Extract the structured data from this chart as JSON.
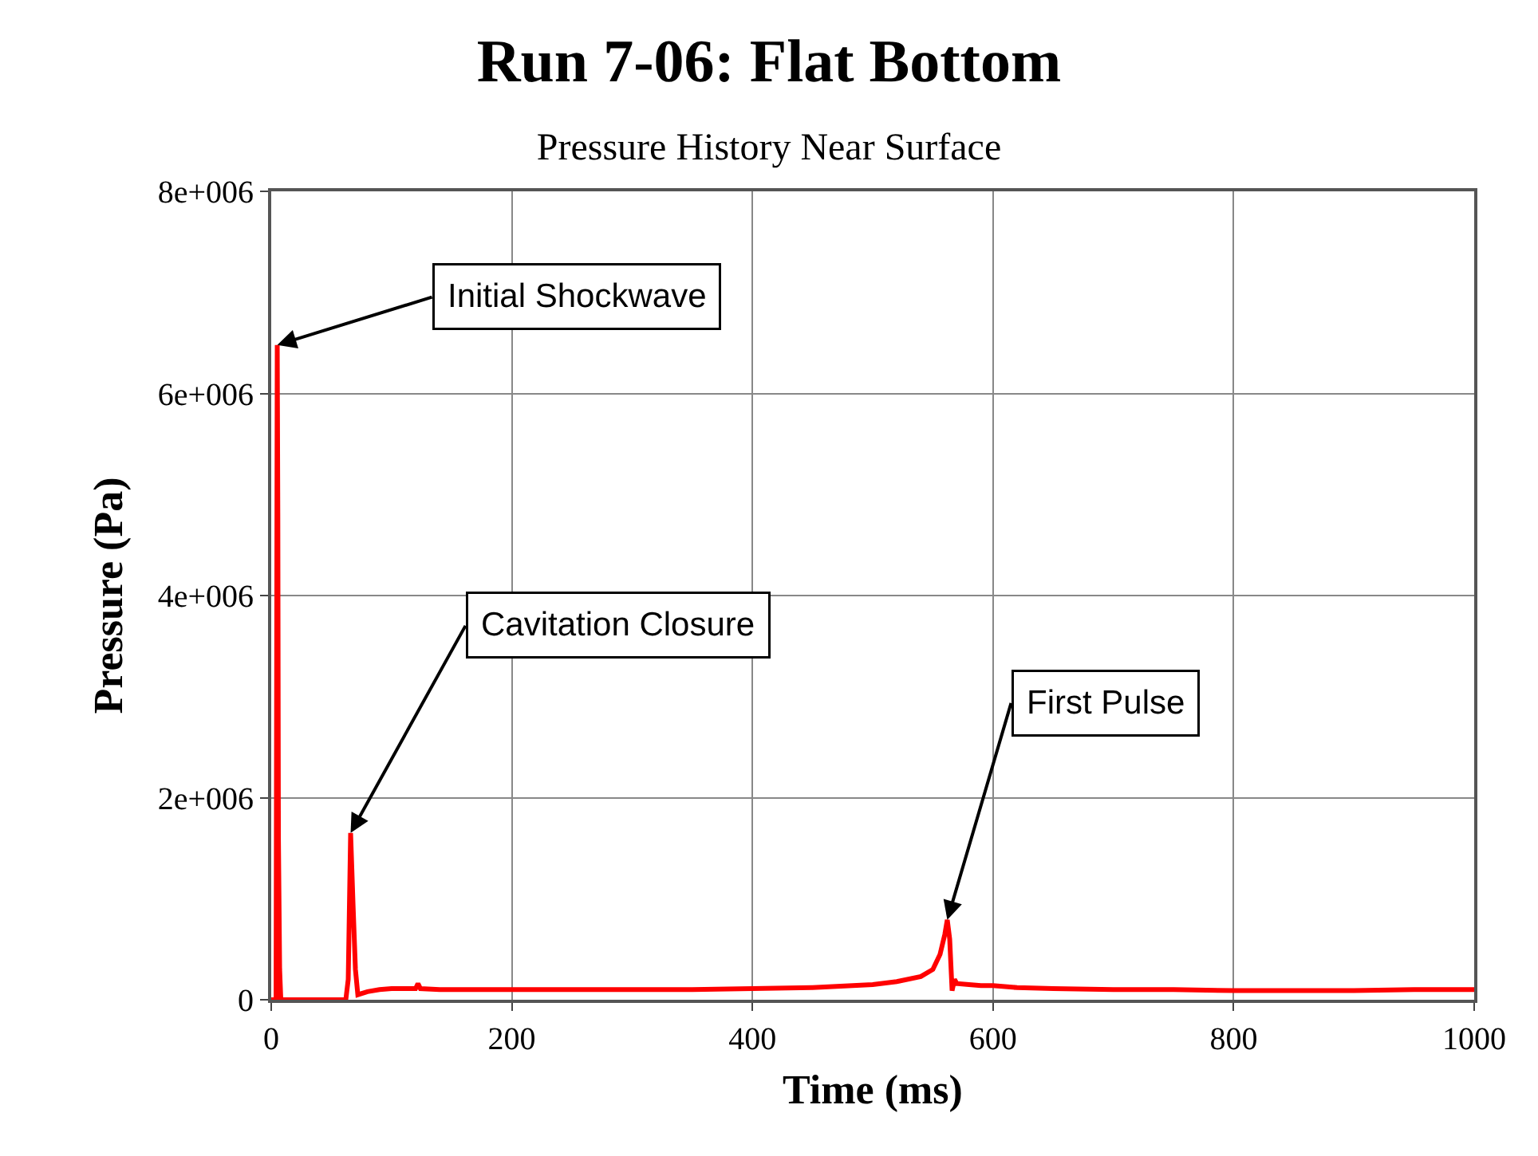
{
  "chart_data": {
    "type": "line",
    "title": "Run 7-06: Flat Bottom",
    "subtitle": "Pressure History Near Surface",
    "xlabel": "Time (ms)",
    "ylabel": "Pressure (Pa)",
    "x": [
      0,
      4,
      5,
      5.5,
      6,
      7,
      8,
      62,
      64,
      66,
      67,
      68,
      70,
      72,
      80,
      90,
      100,
      120,
      122,
      124,
      140,
      160,
      200,
      250,
      300,
      350,
      400,
      450,
      500,
      520,
      540,
      550,
      556,
      560,
      562,
      564,
      566,
      568,
      570,
      580,
      590,
      600,
      620,
      650,
      700,
      750,
      800,
      850,
      900,
      950,
      1000
    ],
    "series": [
      {
        "color": "#ff0000",
        "values": [
          0,
          0,
          6480000,
          4800000,
          1600000,
          300000,
          0,
          0,
          200000,
          1650000,
          1300000,
          950000,
          300000,
          50000,
          80000,
          100000,
          110000,
          110000,
          160000,
          110000,
          100000,
          100000,
          100000,
          100000,
          100000,
          100000,
          110000,
          120000,
          150000,
          180000,
          230000,
          300000,
          450000,
          650000,
          790000,
          600000,
          90000,
          200000,
          160000,
          150000,
          140000,
          140000,
          120000,
          110000,
          100000,
          100000,
          90000,
          90000,
          90000,
          100000,
          100000
        ]
      }
    ],
    "xlim": [
      0,
      1000
    ],
    "xticks": [
      0,
      200,
      400,
      600,
      800,
      1000
    ],
    "ylim": [
      0,
      8000000
    ],
    "yticks": [
      {
        "value": 0,
        "label": "0"
      },
      {
        "value": 2000000,
        "label": "2e+006"
      },
      {
        "value": 4000000,
        "label": "4e+006"
      },
      {
        "value": 6000000,
        "label": "6e+006"
      },
      {
        "value": 8000000,
        "label": "8e+006"
      }
    ],
    "grid": true,
    "marker": "none",
    "line_style": "solid",
    "annotations": [
      {
        "text": "Initial Shockwave",
        "x": 5,
        "y": 6480000
      },
      {
        "text": "Cavitation Closure",
        "x": 66,
        "y": 1650000
      },
      {
        "text": "First Pulse",
        "x": 562,
        "y": 790000
      }
    ]
  }
}
